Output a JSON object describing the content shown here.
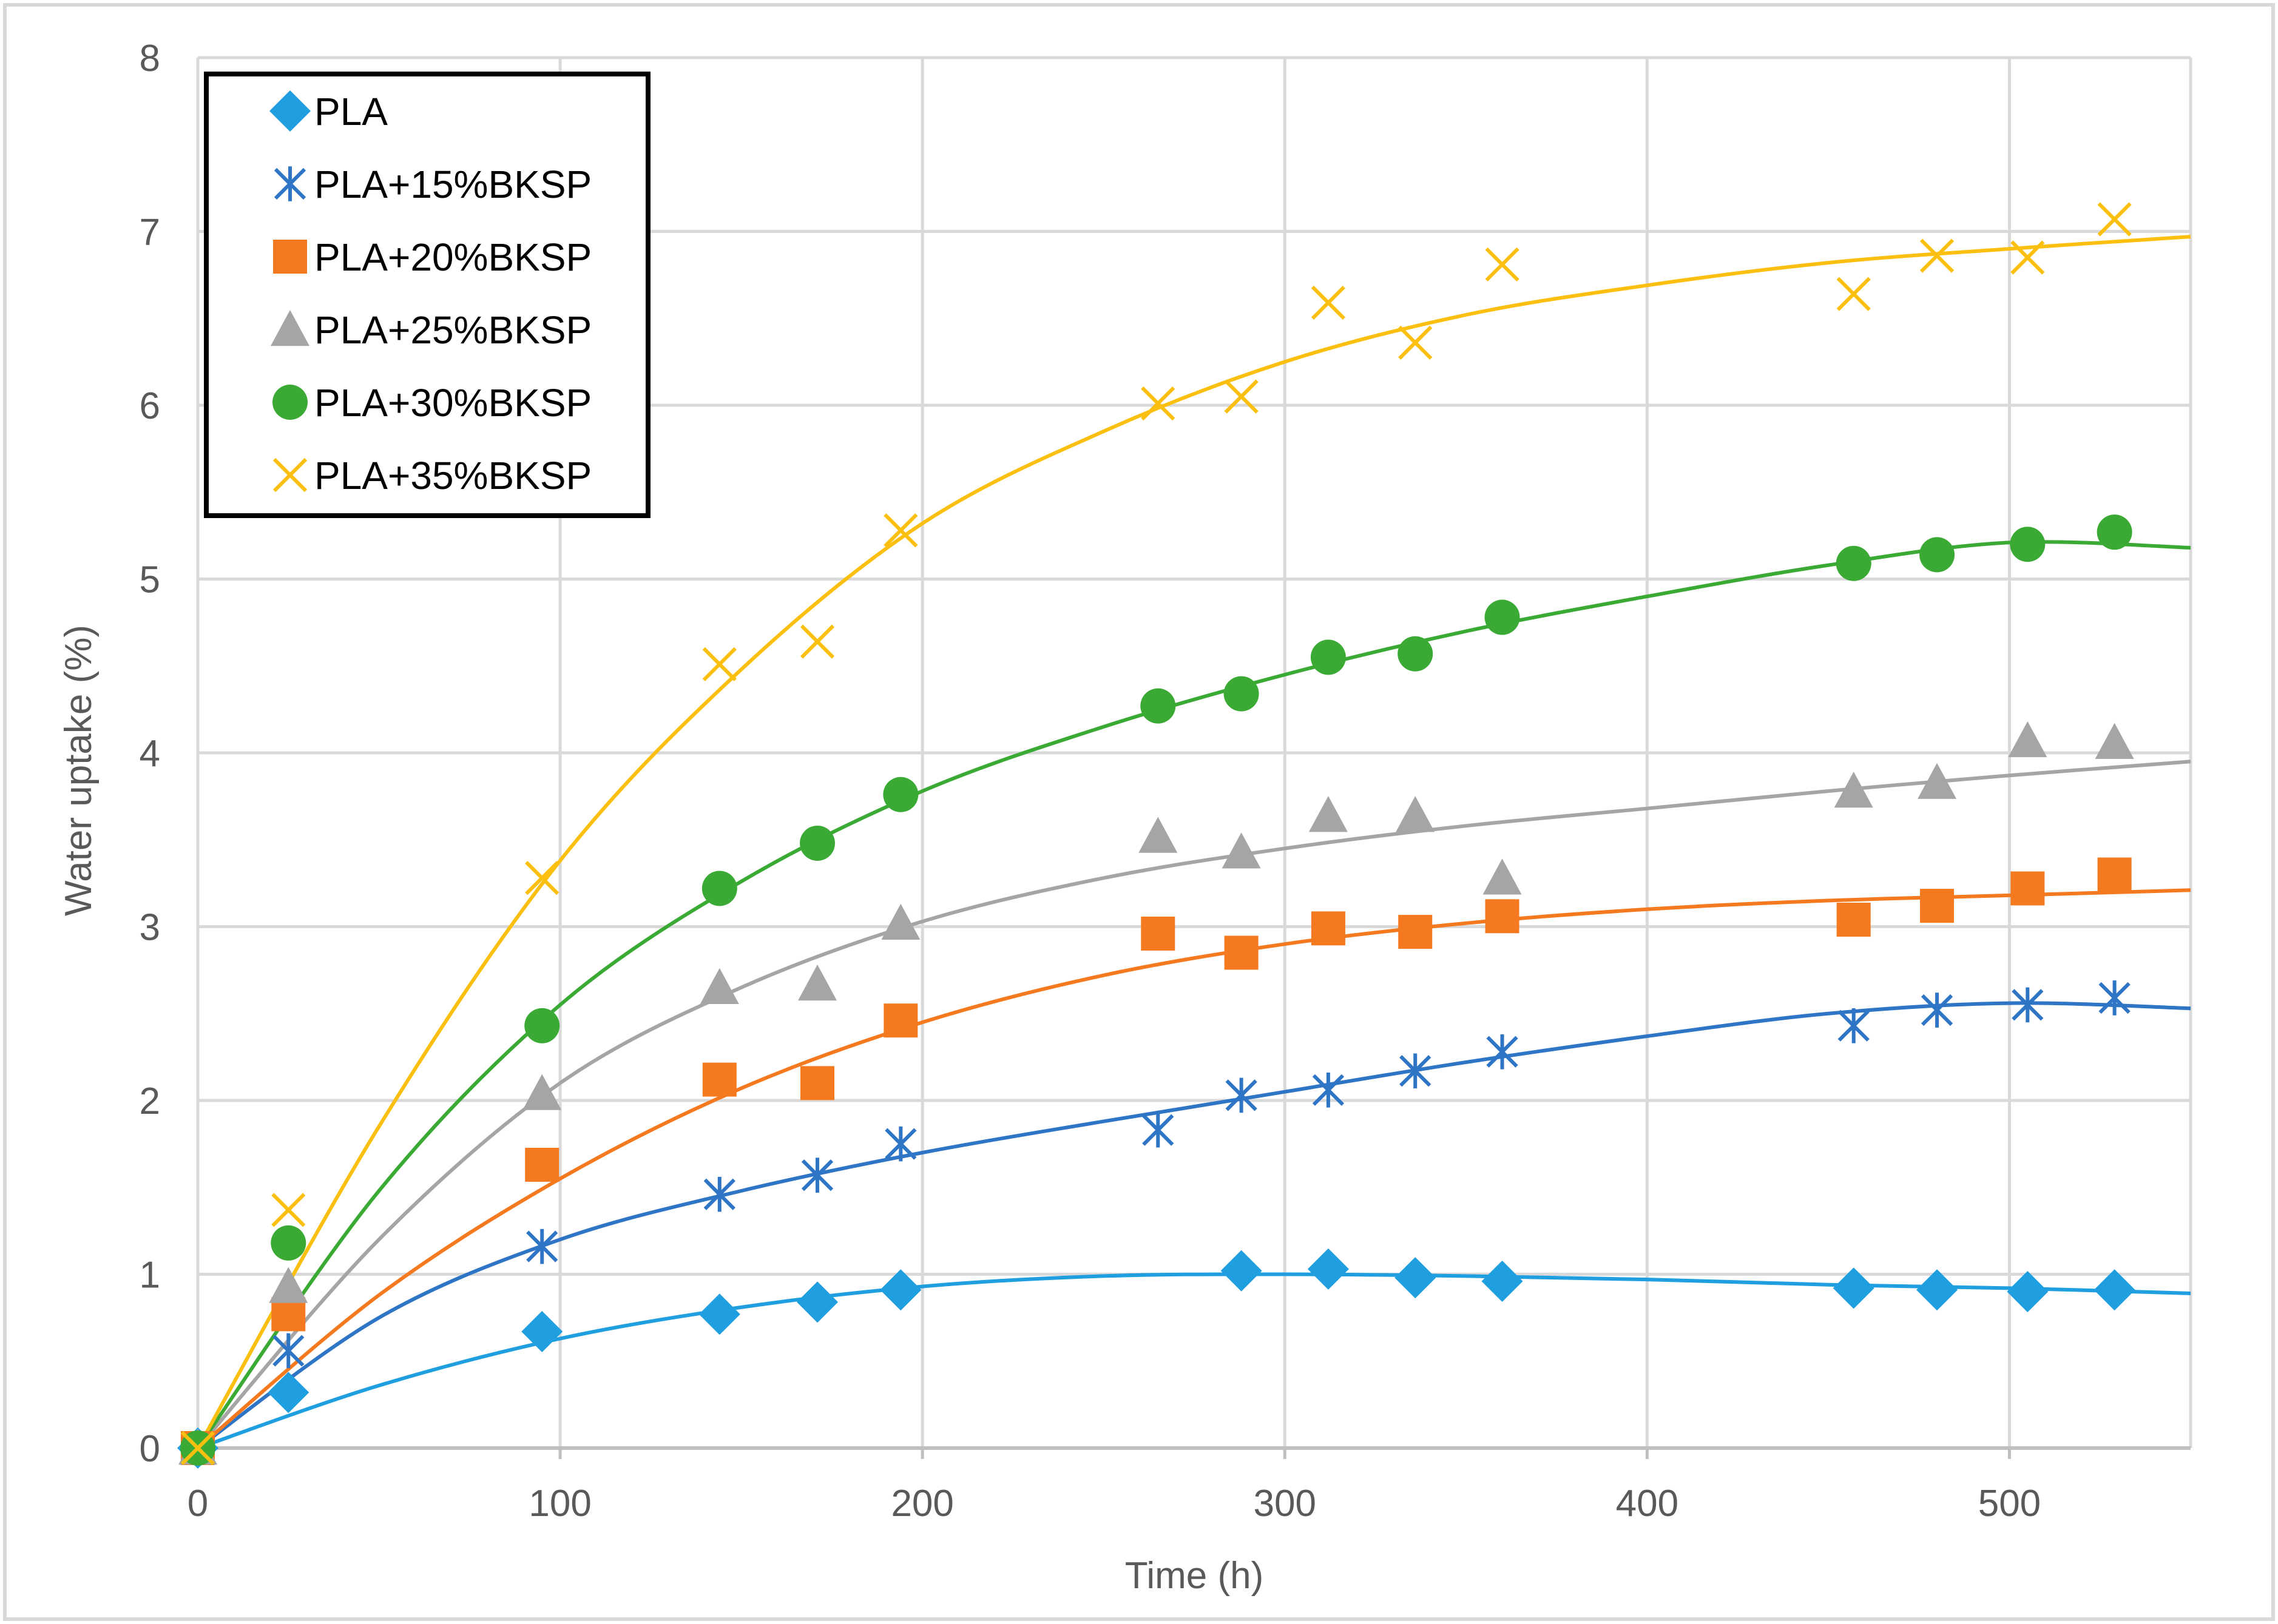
{
  "chart_data": {
    "type": "scatter",
    "title": "",
    "xlabel": "Time (h)",
    "ylabel": "Water uptake (%)",
    "xlim": [
      0,
      550
    ],
    "ylim": [
      0,
      8
    ],
    "xticks": [
      0,
      100,
      200,
      300,
      400,
      500
    ],
    "yticks": [
      0,
      1,
      2,
      3,
      4,
      5,
      6,
      7,
      8
    ],
    "grid": true,
    "legend_position": "top-left",
    "series": [
      {
        "name": "PLA",
        "marker": "diamond",
        "color": "#1f9fe0",
        "x": [
          0,
          25,
          95,
          144,
          171,
          194,
          288,
          312,
          336,
          360,
          457,
          480,
          505,
          529
        ],
        "y": [
          0,
          0.32,
          0.67,
          0.77,
          0.84,
          0.91,
          1.02,
          1.03,
          0.98,
          0.96,
          0.92,
          0.91,
          0.9,
          0.91
        ],
        "trend_x": [
          0,
          50,
          100,
          150,
          200,
          250,
          300,
          350,
          400,
          450,
          500,
          550
        ],
        "trend_y": [
          0,
          0.36,
          0.63,
          0.81,
          0.93,
          0.99,
          1.0,
          0.99,
          0.97,
          0.94,
          0.92,
          0.89
        ]
      },
      {
        "name": "PLA+15%BKSP",
        "marker": "asterisk",
        "color": "#2e75c6",
        "x": [
          0,
          25,
          95,
          144,
          171,
          194,
          265,
          288,
          312,
          336,
          360,
          457,
          480,
          505,
          529
        ],
        "y": [
          0,
          0.56,
          1.16,
          1.46,
          1.57,
          1.75,
          1.83,
          2.03,
          2.06,
          2.17,
          2.28,
          2.43,
          2.52,
          2.55,
          2.59
        ],
        "trend_x": [
          0,
          50,
          100,
          150,
          200,
          250,
          300,
          350,
          400,
          450,
          500,
          550
        ],
        "trend_y": [
          0,
          0.75,
          1.2,
          1.48,
          1.7,
          1.88,
          2.05,
          2.22,
          2.37,
          2.5,
          2.56,
          2.53
        ]
      },
      {
        "name": "PLA+20%BKSP",
        "marker": "square",
        "color": "#f4791f",
        "x": [
          0,
          25,
          95,
          144,
          171,
          194,
          265,
          288,
          312,
          336,
          360,
          457,
          480,
          505,
          529
        ],
        "y": [
          0,
          0.77,
          1.63,
          2.12,
          2.1,
          2.46,
          2.96,
          2.85,
          2.99,
          2.97,
          3.06,
          3.04,
          3.12,
          3.22,
          3.3
        ],
        "trend_x": [
          0,
          50,
          100,
          150,
          200,
          250,
          300,
          350,
          400,
          450,
          500,
          550
        ],
        "trend_y": [
          0,
          0.88,
          1.55,
          2.07,
          2.45,
          2.72,
          2.9,
          3.02,
          3.1,
          3.15,
          3.18,
          3.21
        ]
      },
      {
        "name": "PLA+25%BKSP",
        "marker": "triangle",
        "color": "#a5a5a5",
        "x": [
          0,
          25,
          95,
          144,
          171,
          194,
          265,
          288,
          312,
          336,
          360,
          457,
          480,
          505,
          529
        ],
        "y": [
          0,
          0.93,
          2.04,
          2.65,
          2.67,
          3.02,
          3.52,
          3.43,
          3.64,
          3.64,
          3.28,
          3.78,
          3.83,
          4.07,
          4.06
        ],
        "trend_x": [
          0,
          50,
          100,
          150,
          200,
          250,
          300,
          350,
          400,
          450,
          500,
          550
        ],
        "trend_y": [
          0,
          1.2,
          2.1,
          2.65,
          3.03,
          3.28,
          3.45,
          3.58,
          3.68,
          3.78,
          3.87,
          3.95
        ]
      },
      {
        "name": "PLA+30%BKSP",
        "marker": "circle",
        "color": "#3aaa35",
        "x": [
          0,
          25,
          95,
          144,
          171,
          194,
          265,
          288,
          312,
          336,
          360,
          457,
          480,
          505,
          529
        ],
        "y": [
          0,
          1.18,
          2.43,
          3.22,
          3.48,
          3.76,
          4.27,
          4.34,
          4.55,
          4.57,
          4.78,
          5.09,
          5.14,
          5.2,
          5.27
        ],
        "trend_x": [
          0,
          50,
          100,
          150,
          200,
          250,
          300,
          350,
          400,
          450,
          500,
          550
        ],
        "trend_y": [
          0,
          1.48,
          2.55,
          3.26,
          3.78,
          4.15,
          4.45,
          4.7,
          4.9,
          5.08,
          5.21,
          5.18
        ]
      },
      {
        "name": "PLA+35%BKSP",
        "marker": "x",
        "color": "#fbbf0f",
        "x": [
          0,
          25,
          95,
          144,
          171,
          194,
          265,
          288,
          312,
          336,
          360,
          457,
          480,
          505,
          529
        ],
        "y": [
          0,
          1.37,
          3.28,
          4.51,
          4.64,
          5.28,
          6.01,
          6.05,
          6.59,
          6.36,
          6.81,
          6.64,
          6.86,
          6.85,
          7.07
        ],
        "trend_x": [
          0,
          50,
          100,
          150,
          200,
          250,
          300,
          350,
          400,
          450,
          500,
          550
        ],
        "trend_y": [
          0,
          1.85,
          3.38,
          4.48,
          5.32,
          5.85,
          6.25,
          6.52,
          6.69,
          6.82,
          6.9,
          6.97
        ]
      }
    ]
  }
}
